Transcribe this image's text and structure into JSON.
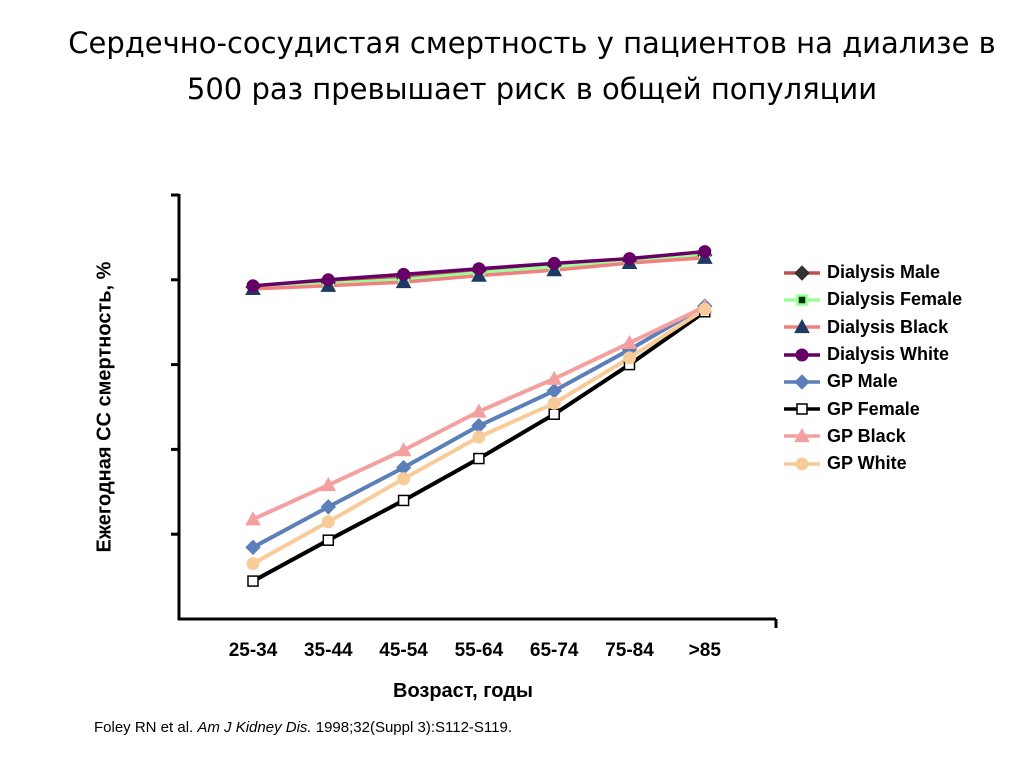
{
  "slide": {
    "title_line1": "Сердечно-сосудистая смертность у пациентов на диализе в",
    "title_line2": "500 раз  превышает риск в общей популяции",
    "reference": {
      "authors": "Foley RN et al. ",
      "journal": "Am J Kidney Dis.",
      "citation": " 1998;32(Suppl 3):S112-S119."
    }
  },
  "chart_data": {
    "type": "line",
    "title": "",
    "xlabel": "Возраст, годы",
    "ylabel": "Ежегодная СС смертность, %",
    "categories": [
      "25-34",
      "35-44",
      "45-54",
      "55-64",
      "65-74",
      "75-84",
      ">85"
    ],
    "y_tick_labels": [],
    "y_scale": "log (unlabeled)",
    "ylim": [
      0.001,
      100
    ],
    "grid": false,
    "legend_position": "right",
    "series": [
      {
        "name": "Dialysis Male",
        "color": "#c0504d",
        "marker": "diamond",
        "values": [
          8.2,
          9.3,
          10.5,
          12.8,
          14.8,
          16.8,
          19.5
        ]
      },
      {
        "name": "Dialysis Female",
        "color": "#99ff99",
        "marker": "square",
        "values": [
          8.0,
          9.0,
          10.1,
          12.1,
          14.3,
          16.6,
          20.2
        ]
      },
      {
        "name": "Dialysis Black",
        "color": "#f08080",
        "marker": "triangle",
        "values": [
          7.8,
          8.5,
          9.4,
          11.2,
          13.0,
          15.8,
          18.2
        ]
      },
      {
        "name": "Dialysis White",
        "color": "#660066",
        "marker": "circle",
        "values": [
          8.5,
          10.0,
          11.6,
          13.5,
          15.6,
          17.8,
          21.5
        ]
      },
      {
        "name": "GP Male",
        "color": "#5b7fb8",
        "marker": "diamond",
        "values": [
          0.007,
          0.021,
          0.061,
          0.19,
          0.49,
          1.5,
          4.9
        ]
      },
      {
        "name": "GP Female",
        "color": "#000000",
        "marker": "hollow-square",
        "values": [
          0.0028,
          0.0085,
          0.025,
          0.078,
          0.26,
          1.0,
          4.2
        ]
      },
      {
        "name": "GP Black",
        "color": "#f4a0a0",
        "marker": "triangle",
        "values": [
          0.015,
          0.038,
          0.098,
          0.28,
          0.68,
          1.8,
          4.8
        ]
      },
      {
        "name": "GP White",
        "color": "#f8cc99",
        "marker": "circle",
        "values": [
          0.0045,
          0.014,
          0.045,
          0.14,
          0.35,
          1.2,
          4.5
        ]
      }
    ]
  }
}
